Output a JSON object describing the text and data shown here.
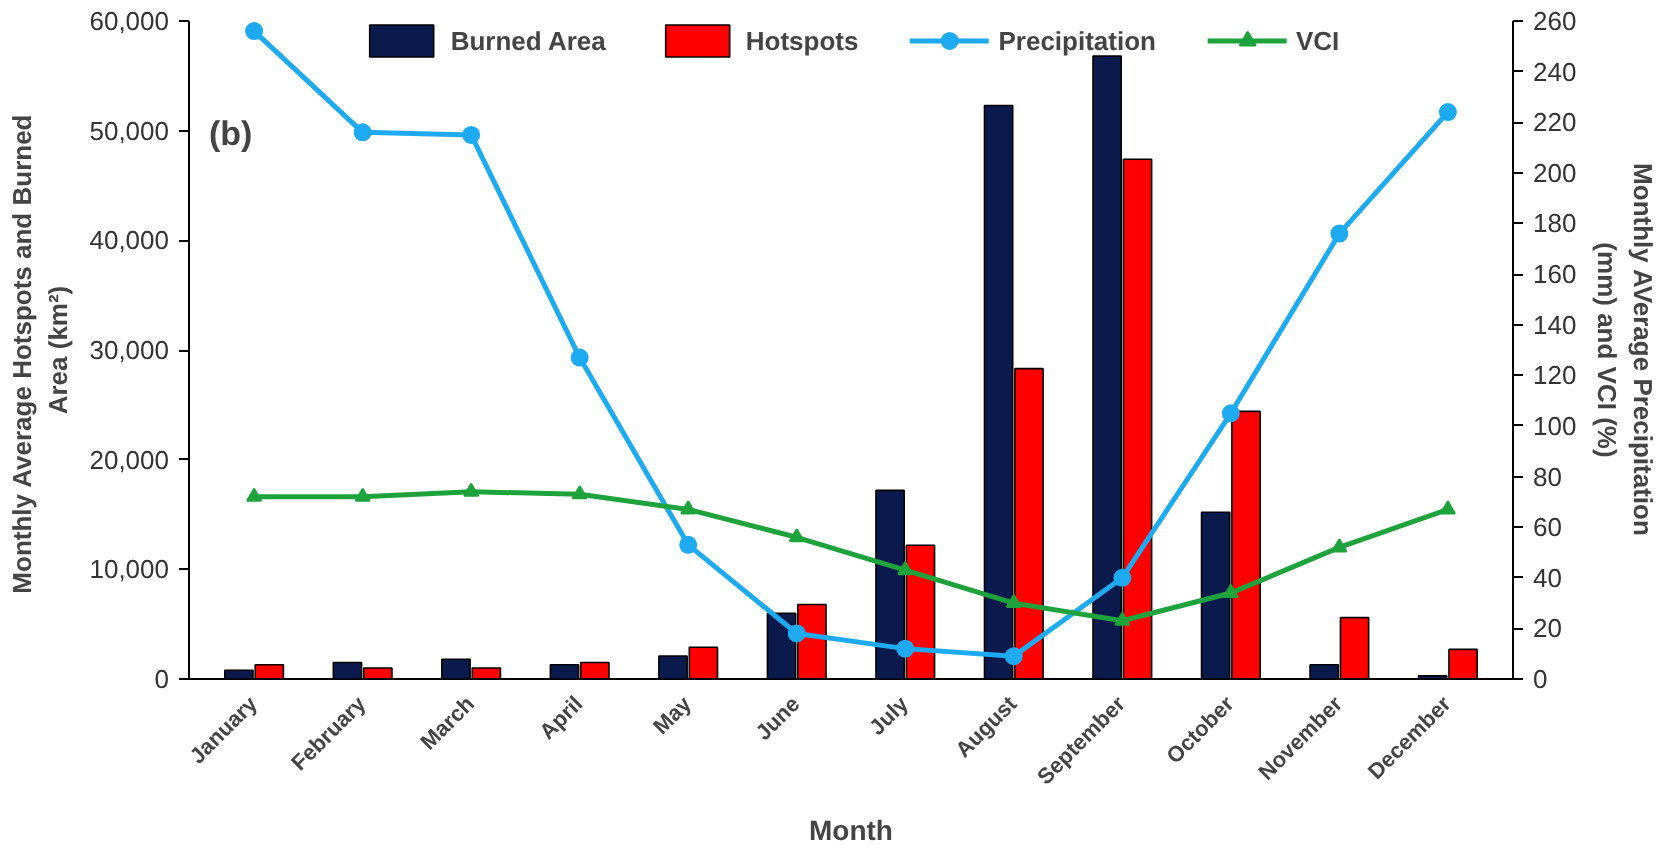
{
  "chart_data": {
    "type": "bar",
    "xlabel": "Month",
    "ylabel": "Monthly Average Hotspots  and Burned\nArea (km²)",
    "y2label": "Monthly AVerage Precipitation\n(mm) and VCI (%)",
    "categories": [
      "January",
      "February",
      "March",
      "April",
      "May",
      "June",
      "July",
      "August",
      "September",
      "October",
      "November",
      "December"
    ],
    "series": [
      {
        "name": "Burned Area",
        "color": "#0b1a4c",
        "values": [
          800,
          1500,
          1800,
          1300,
          2100,
          6000,
          17200,
          52300,
          56800,
          15200,
          1300,
          300
        ]
      },
      {
        "name": "Hotspots",
        "color": "#ff0000",
        "values": [
          1300,
          1000,
          1000,
          1500,
          2900,
          6800,
          12200,
          28300,
          47400,
          24400,
          5600,
          2700
        ]
      },
      {
        "name": "Precipitation",
        "type": "line",
        "axis": "y2",
        "marker": "circle",
        "color": "#1eaaf0",
        "values": [
          256,
          216,
          215,
          127,
          53,
          18,
          12,
          9,
          40,
          105,
          176,
          224
        ]
      },
      {
        "name": "VCI",
        "type": "line",
        "axis": "y2",
        "marker": "triangle",
        "color": "#1ea33c",
        "values": [
          72,
          72,
          74,
          73,
          67,
          56,
          43,
          30,
          23,
          34,
          52,
          67
        ]
      }
    ],
    "ylim": [
      0,
      60000
    ],
    "yticks": [
      {
        "value": 0,
        "label": "0"
      },
      {
        "value": 10000,
        "label": "10,000"
      },
      {
        "value": 20000,
        "label": "20,000"
      },
      {
        "value": 30000,
        "label": "30,000"
      },
      {
        "value": 40000,
        "label": "40,000"
      },
      {
        "value": 50000,
        "label": "50,000"
      },
      {
        "value": 60000,
        "label": "60,000"
      }
    ],
    "y2lim": [
      0,
      260
    ],
    "y2ticks": [
      0,
      20,
      40,
      60,
      80,
      100,
      120,
      140,
      160,
      180,
      200,
      220,
      240,
      260
    ],
    "annotations": [
      "(b)"
    ],
    "legend": "top",
    "grid": false
  }
}
